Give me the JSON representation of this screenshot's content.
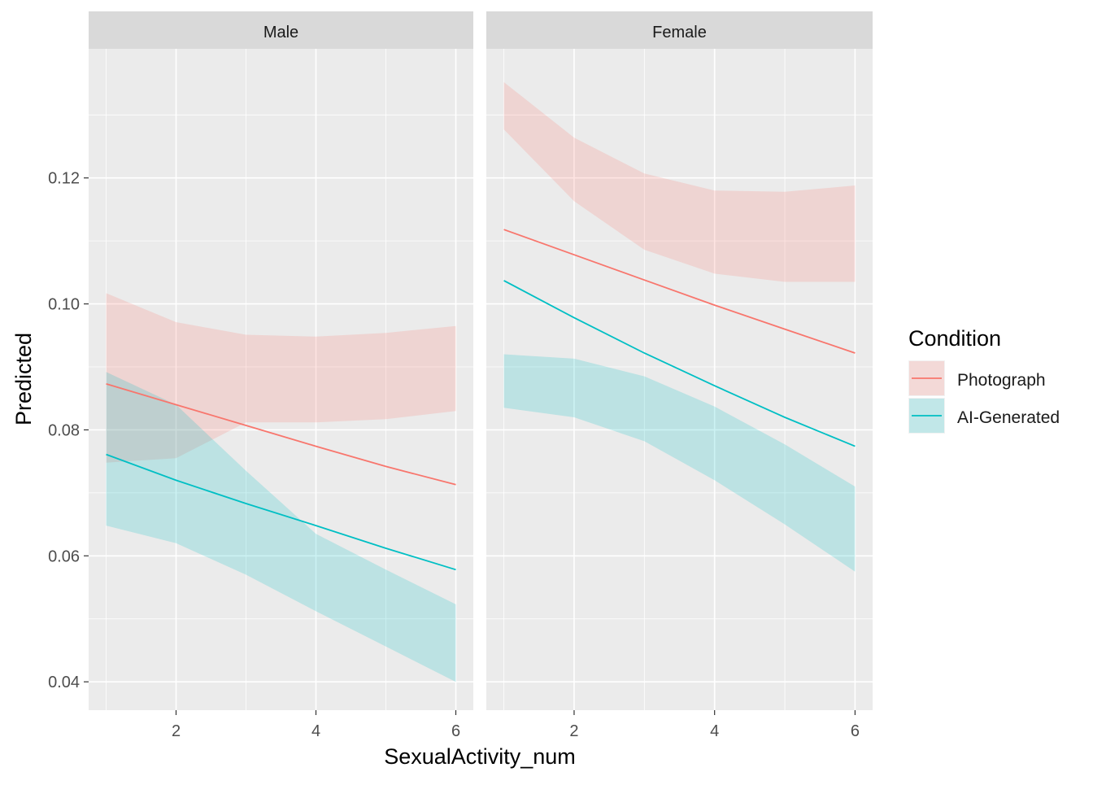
{
  "chart_data": {
    "type": "line",
    "ylabel": "Predicted",
    "xlabel": "SexualActivity_num",
    "x_ticks": [
      2,
      4,
      6
    ],
    "x_tick_labels": [
      "2",
      "4",
      "6"
    ],
    "y_ticks": [
      0.04,
      0.06,
      0.08,
      0.1,
      0.12
    ],
    "y_tick_labels": [
      "0.04",
      "0.06",
      "0.08",
      "0.10",
      "0.12"
    ],
    "xlim": [
      0.75,
      6.25
    ],
    "ylim": [
      0.0355,
      0.1405
    ],
    "grid": true,
    "legend": {
      "title": "Condition",
      "position": "right",
      "items": [
        {
          "label": "Photograph",
          "color": "#F8766D"
        },
        {
          "label": "AI-Generated",
          "color": "#00BFC4"
        }
      ]
    },
    "facets": [
      {
        "label": "Male",
        "series": [
          {
            "name": "Photograph",
            "color": "#F8766D",
            "x": [
              1,
              2,
              3,
              4,
              5,
              6
            ],
            "y": [
              0.0873,
              0.084,
              0.0807,
              0.0774,
              0.0742,
              0.0713
            ],
            "lower": [
              0.0748,
              0.0755,
              0.0812,
              0.0812,
              0.0817,
              0.083
            ],
            "upper": [
              0.1017,
              0.0971,
              0.0951,
              0.0948,
              0.0954,
              0.0965
            ]
          },
          {
            "name": "AI-Generated",
            "color": "#00BFC4",
            "x": [
              1,
              2,
              3,
              4,
              5,
              6
            ],
            "y": [
              0.0761,
              0.072,
              0.0683,
              0.0648,
              0.0612,
              0.0578
            ],
            "lower": [
              0.0648,
              0.062,
              0.057,
              0.0512,
              0.0456,
              0.04
            ],
            "upper": [
              0.0892,
              0.084,
              0.0735,
              0.0635,
              0.0578,
              0.0523
            ]
          }
        ]
      },
      {
        "label": "Female",
        "series": [
          {
            "name": "Photograph",
            "color": "#F8766D",
            "x": [
              1,
              2,
              3,
              4,
              5,
              6
            ],
            "y": [
              0.1118,
              0.1078,
              0.1038,
              0.0998,
              0.096,
              0.0922
            ],
            "lower": [
              0.1277,
              0.1163,
              0.1086,
              0.1048,
              0.1035,
              0.1035
            ],
            "upper": [
              0.1352,
              0.1264,
              0.1207,
              0.118,
              0.1178,
              0.1188
            ]
          },
          {
            "name": "AI-Generated",
            "color": "#00BFC4",
            "x": [
              1,
              2,
              3,
              4,
              5,
              6
            ],
            "y": [
              0.1037,
              0.0978,
              0.0922,
              0.087,
              0.082,
              0.0774
            ],
            "lower": [
              0.0835,
              0.082,
              0.0782,
              0.072,
              0.065,
              0.0575
            ],
            "upper": [
              0.092,
              0.0913,
              0.0885,
              0.0837,
              0.0777,
              0.071
            ]
          }
        ]
      }
    ]
  }
}
